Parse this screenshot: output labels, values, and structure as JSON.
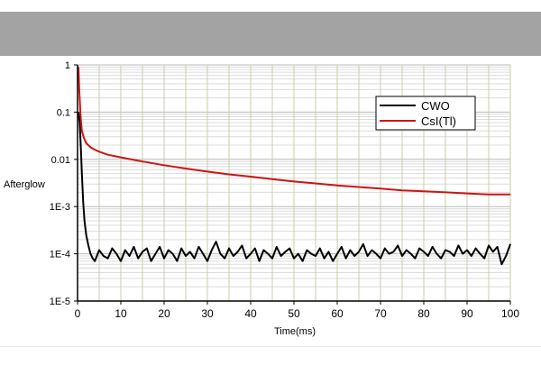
{
  "colors": {
    "banner": "#a3a3a3",
    "grid_major": "#b9b9b9",
    "grid_minor": "#dcdcdc",
    "grid_vertical": "#c8cfa2",
    "axis": "#000000"
  },
  "chart_data": {
    "type": "line",
    "title": "",
    "xlabel": "Time(ms)",
    "ylabel": "Afterglow",
    "xlim": [
      0,
      100
    ],
    "ylim": [
      1e-05,
      1
    ],
    "yscale": "log",
    "grid": true,
    "legend_position": "top-right",
    "x_ticks": [
      {
        "value": 0,
        "label": "0"
      },
      {
        "value": 10,
        "label": "10"
      },
      {
        "value": 20,
        "label": "20"
      },
      {
        "value": 30,
        "label": "30"
      },
      {
        "value": 40,
        "label": "40"
      },
      {
        "value": 50,
        "label": "50"
      },
      {
        "value": 60,
        "label": "60"
      },
      {
        "value": 70,
        "label": "70"
      },
      {
        "value": 80,
        "label": "80"
      },
      {
        "value": 90,
        "label": "90"
      },
      {
        "value": 100,
        "label": "100"
      }
    ],
    "y_ticks": [
      {
        "value": 1,
        "label": "1"
      },
      {
        "value": 0.1,
        "label": "0.1"
      },
      {
        "value": 0.01,
        "label": "0.01"
      },
      {
        "value": 0.001,
        "label": "1E-3"
      },
      {
        "value": 0.0001,
        "label": "1E-4"
      },
      {
        "value": 1e-05,
        "label": "1E-5"
      }
    ],
    "series": [
      {
        "name": "CWO",
        "color": "#000000",
        "x": [
          0.2,
          0.5,
          0.8,
          1.0,
          1.3,
          1.6,
          2,
          2.5,
          3,
          3.5,
          4,
          5,
          6,
          7,
          8,
          9,
          10,
          11,
          12,
          13,
          14,
          15,
          16,
          17,
          18,
          19,
          20,
          21,
          22,
          23,
          24,
          25,
          26,
          27,
          28,
          29,
          30,
          31,
          32,
          33,
          34,
          35,
          36,
          37,
          38,
          39,
          40,
          41,
          42,
          43,
          44,
          45,
          46,
          47,
          48,
          49,
          50,
          51,
          52,
          53,
          54,
          55,
          56,
          57,
          58,
          59,
          60,
          61,
          62,
          63,
          64,
          65,
          66,
          67,
          68,
          69,
          70,
          71,
          72,
          73,
          74,
          75,
          76,
          77,
          78,
          79,
          80,
          81,
          82,
          83,
          84,
          85,
          86,
          87,
          88,
          89,
          90,
          91,
          92,
          93,
          94,
          95,
          96,
          97,
          98,
          99,
          100
        ],
        "values": [
          0.1,
          0.06,
          0.015,
          0.005,
          0.0013,
          0.0005,
          0.00025,
          0.00015,
          0.0001,
          8e-05,
          7e-05,
          0.00012,
          9e-05,
          8e-05,
          0.00013,
          0.0001,
          7e-05,
          0.00012,
          9e-05,
          0.00014,
          8e-05,
          0.00011,
          0.00013,
          7e-05,
          0.0001,
          0.00014,
          8e-05,
          0.00012,
          0.0001,
          7e-05,
          0.00013,
          9e-05,
          0.00011,
          8e-05,
          0.00014,
          0.0001,
          7e-05,
          0.00012,
          0.00018,
          0.0001,
          8e-05,
          0.00013,
          9e-05,
          0.00011,
          0.00015,
          8e-05,
          0.0001,
          0.00013,
          7e-05,
          0.00012,
          0.0001,
          8e-05,
          0.00014,
          9e-05,
          0.00011,
          0.00013,
          8e-05,
          0.0001,
          7e-05,
          0.00012,
          0.0001,
          9e-05,
          0.00013,
          8e-05,
          0.00011,
          7e-05,
          0.0001,
          0.00014,
          8e-05,
          0.00012,
          9e-05,
          0.00011,
          0.00016,
          9e-05,
          0.00012,
          0.0001,
          8e-05,
          0.00013,
          0.0001,
          0.00011,
          0.00015,
          9e-05,
          0.00012,
          0.0001,
          8e-05,
          0.00013,
          0.00011,
          9e-05,
          0.00014,
          0.0001,
          8e-05,
          0.00012,
          0.00011,
          9e-05,
          0.00015,
          0.0001,
          0.00012,
          9e-05,
          0.00013,
          0.0001,
          8e-05,
          0.00015,
          0.00011,
          0.00014,
          6e-05,
          9e-05,
          0.00016
        ]
      },
      {
        "name": "CsI(Tl)",
        "color": "#cc1414",
        "x": [
          0.2,
          0.4,
          0.7,
          1,
          1.5,
          2,
          3,
          4,
          5,
          7,
          10,
          15,
          20,
          25,
          30,
          35,
          40,
          45,
          50,
          55,
          60,
          65,
          70,
          75,
          80,
          85,
          90,
          95,
          100
        ],
        "values": [
          0.9,
          0.3,
          0.08,
          0.04,
          0.028,
          0.022,
          0.018,
          0.016,
          0.0145,
          0.0125,
          0.011,
          0.009,
          0.0075,
          0.0064,
          0.0055,
          0.0048,
          0.0043,
          0.0038,
          0.0034,
          0.0031,
          0.0028,
          0.0026,
          0.0024,
          0.0022,
          0.0021,
          0.002,
          0.0019,
          0.0018,
          0.0018
        ]
      }
    ]
  }
}
